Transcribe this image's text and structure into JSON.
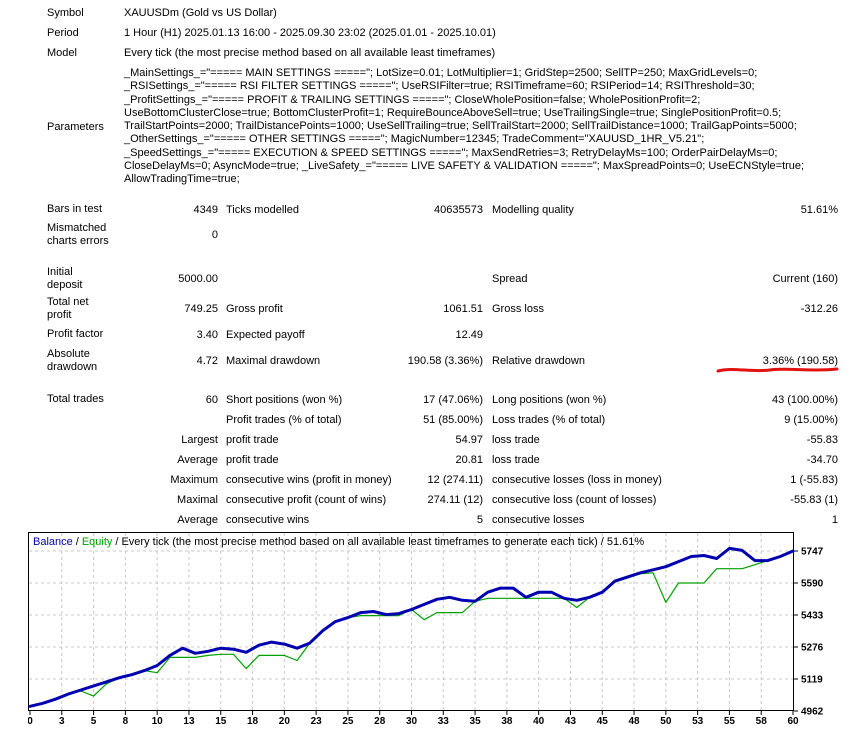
{
  "info": {
    "symbol": {
      "label": "Symbol",
      "value": "XAUUSDm (Gold vs US Dollar)"
    },
    "period": {
      "label": "Period",
      "value": "1 Hour (H1) 2025.01.13 16:00 - 2025.09.30 23:02 (2025.01.01 - 2025.10.01)"
    },
    "model": {
      "label": "Model",
      "value": "Every tick (the most precise method based on all available least timeframes)"
    },
    "parameters": {
      "label": "Parameters",
      "value": "_MainSettings_=\"===== MAIN SETTINGS =====\"; LotSize=0.01; LotMultiplier=1; GridStep=2500; SellTP=250; MaxGridLevels=0;\n_RSISettings_=\"===== RSI FILTER SETTINGS =====\"; UseRSIFilter=true; RSITimeframe=60; RSIPeriod=14; RSIThreshold=30;\n_ProfitSettings_=\"===== PROFIT & TRAILING SETTINGS =====\"; CloseWholePosition=false; WholePositionProfit=2;\nUseBottomClusterClose=true; BottomClusterProfit=1; RequireBounceAboveSell=true; UseTrailingSingle=true; SinglePositionProfit=0.5;\nTrailStartPoints=2000; TrailDistancePoints=1000; UseSellTrailing=true; SellTrailStart=2000; SellTrailDistance=1000; TrailGapPoints=5000;\n_OtherSettings_=\"===== OTHER SETTINGS =====\"; MagicNumber=12345; TradeComment=\"XAUUSD_1HR_V5.21\";\n_SpeedSettings_=\"===== EXECUTION & SPEED SETTINGS =====\"; MaxSendRetries=3; RetryDelayMs=100; OrderPairDelayMs=0;\nCloseDelayMs=0; AsyncMode=true; _LiveSafety_=\"===== LIVE SAFETY & VALIDATION =====\"; MaxSpreadPoints=0; UseECNStyle=true;\nAllowTradingTime=true;"
    }
  },
  "report": {
    "underline_color": "#e31212",
    "rows": [
      {
        "c1": "Bars in test",
        "c2": "4349",
        "c3": "Ticks modelled",
        "c4": "40635573",
        "c5": "Modelling quality",
        "c6": "51.61%"
      },
      {
        "c1": "Mismatched\ncharts errors",
        "c2": "0",
        "c3": "",
        "c4": "",
        "c5": "",
        "c6": ""
      },
      {
        "c1": "Initial\ndeposit",
        "c2": "5000.00",
        "c3": "",
        "c4": "",
        "c5": "Spread",
        "c6": "Current (160)"
      },
      {
        "c1": "Total net\nprofit",
        "c2": "749.25",
        "c3": "Gross profit",
        "c4": "1061.51",
        "c5": "Gross loss",
        "c6": "-312.26"
      },
      {
        "c1": "Profit factor",
        "c2": "3.40",
        "c3": "Expected payoff",
        "c4": "12.49",
        "c5": "",
        "c6": ""
      },
      {
        "c1": "Absolute\ndrawdown",
        "c2": "4.72",
        "c3": "Maximal drawdown",
        "c4": "190.58 (3.36%)",
        "c5": "Relative drawdown",
        "c6": "3.36% (190.58)"
      },
      {
        "c1": "Total trades",
        "c2": "60",
        "c3": "Short positions (won %)",
        "c4": "17 (47.06%)",
        "c5": "Long positions (won %)",
        "c6": "43 (100.00%)"
      },
      {
        "c1": "",
        "c2": "",
        "c3": "Profit trades (% of total)",
        "c4": "51 (85.00%)",
        "c5": "Loss trades (% of total)",
        "c6": "9 (15.00%)"
      },
      {
        "c1": "",
        "c2": "Largest",
        "c3": "profit trade",
        "c4": "54.97",
        "c5": "loss trade",
        "c6": "-55.83"
      },
      {
        "c1": "",
        "c2": "Average",
        "c3": "profit trade",
        "c4": "20.81",
        "c5": "loss trade",
        "c6": "-34.70"
      },
      {
        "c1": "",
        "c2": "Maximum",
        "c3": "consecutive wins (profit in money)",
        "c4": "12 (274.11)",
        "c5": "consecutive losses (loss in money)",
        "c6": "1 (-55.83)"
      },
      {
        "c1": "",
        "c2": "Maximal",
        "c3": "consecutive profit (count of wins)",
        "c4": "274.11 (12)",
        "c5": "consecutive loss (count of losses)",
        "c6": "-55.83 (1)"
      },
      {
        "c1": "",
        "c2": "Average",
        "c3": "consecutive wins",
        "c4": "5",
        "c5": "consecutive losses",
        "c6": "1"
      }
    ]
  },
  "chart_data": {
    "type": "line",
    "title_parts": {
      "balance_label": "Balance",
      "equity_label": "Equity",
      "separator": "/",
      "description": "Every tick (the most precise method based on all available least timeframes to generate each tick)",
      "quality": "51.61%"
    },
    "x": [
      0,
      1,
      2,
      3,
      4,
      5,
      6,
      7,
      8,
      9,
      10,
      11,
      12,
      13,
      14,
      15,
      16,
      17,
      18,
      19,
      20,
      21,
      22,
      23,
      24,
      25,
      26,
      27,
      28,
      29,
      30,
      31,
      32,
      33,
      34,
      35,
      36,
      37,
      38,
      39,
      40,
      41,
      42,
      43,
      44,
      45,
      46,
      47,
      48,
      49,
      50,
      51,
      52,
      53,
      54,
      55,
      56,
      57,
      58,
      59,
      60
    ],
    "series": [
      {
        "name": "Balance",
        "color": "#0000b0",
        "width": 3,
        "values": [
          4985,
          5000,
          5020,
          5045,
          5065,
          5085,
          5105,
          5125,
          5140,
          5160,
          5185,
          5235,
          5270,
          5245,
          5255,
          5270,
          5265,
          5250,
          5285,
          5300,
          5290,
          5270,
          5295,
          5355,
          5400,
          5420,
          5445,
          5450,
          5435,
          5440,
          5460,
          5485,
          5510,
          5520,
          5505,
          5500,
          5545,
          5565,
          5565,
          5520,
          5545,
          5545,
          5515,
          5505,
          5520,
          5545,
          5600,
          5620,
          5640,
          5655,
          5670,
          5695,
          5720,
          5725,
          5710,
          5760,
          5750,
          5700,
          5700,
          5720,
          5747
        ]
      },
      {
        "name": "Equity",
        "color": "#00a000",
        "width": 1.2,
        "values": [
          4985,
          5000,
          5020,
          5045,
          5060,
          5035,
          5095,
          5125,
          5140,
          5160,
          5150,
          5225,
          5225,
          5225,
          5235,
          5240,
          5240,
          5170,
          5235,
          5235,
          5235,
          5210,
          5295,
          5355,
          5400,
          5420,
          5430,
          5430,
          5430,
          5430,
          5460,
          5410,
          5445,
          5445,
          5445,
          5500,
          5515,
          5515,
          5515,
          5515,
          5515,
          5515,
          5515,
          5470,
          5520,
          5545,
          5595,
          5615,
          5635,
          5640,
          5495,
          5590,
          5590,
          5590,
          5660,
          5660,
          5660,
          5680,
          5700,
          5720,
          5747
        ]
      }
    ],
    "y_ticks": [
      4962,
      5119,
      5276,
      5433,
      5590,
      5747
    ],
    "x_tick_labels": [
      0,
      3,
      5,
      8,
      10,
      13,
      15,
      18,
      20,
      23,
      25,
      28,
      30,
      33,
      35,
      38,
      40,
      43,
      45,
      48,
      50,
      53,
      55,
      58,
      60
    ],
    "ylim": [
      4962,
      5785
    ],
    "xlabel": "",
    "ylabel": "",
    "grid": "dashed",
    "grid_color": "#c8c8c8",
    "legend_position": "top-left"
  }
}
